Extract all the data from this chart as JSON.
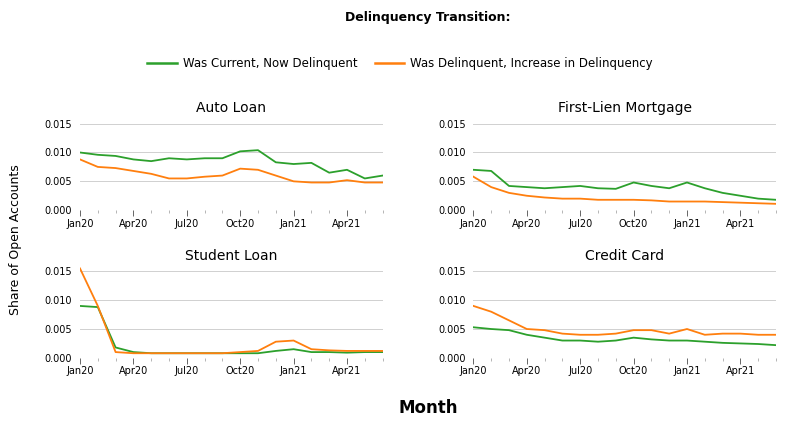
{
  "title": "Delinquency Transition:",
  "legend_labels": [
    "Was Current, Now Delinquent",
    "Was Delinquent, Increase in Delinquency"
  ],
  "legend_colors": [
    "#2ca02c",
    "#ff7f0e"
  ],
  "ylabel": "Share of Open Accounts",
  "xlabel": "Month",
  "subplots": [
    {
      "title": "Auto Loan",
      "green": [
        0.01,
        0.0096,
        0.0094,
        0.0088,
        0.0085,
        0.009,
        0.0088,
        0.009,
        0.009,
        0.0102,
        0.0104,
        0.0083,
        0.008,
        0.0082,
        0.0065,
        0.007,
        0.0055,
        0.006
      ],
      "orange": [
        0.0088,
        0.0075,
        0.0073,
        0.0068,
        0.0063,
        0.0055,
        0.0055,
        0.0058,
        0.006,
        0.0072,
        0.007,
        0.006,
        0.005,
        0.0048,
        0.0048,
        0.0052,
        0.0048,
        0.0048
      ],
      "ylim": [
        0,
        0.016
      ],
      "yticks": [
        0.0,
        0.005,
        0.01,
        0.015
      ]
    },
    {
      "title": "First-Lien Mortgage",
      "green": [
        0.007,
        0.0068,
        0.0042,
        0.004,
        0.0038,
        0.004,
        0.0042,
        0.0038,
        0.0037,
        0.0048,
        0.0042,
        0.0038,
        0.0048,
        0.0038,
        0.003,
        0.0025,
        0.002,
        0.0018
      ],
      "orange": [
        0.0058,
        0.004,
        0.003,
        0.0025,
        0.0022,
        0.002,
        0.002,
        0.0018,
        0.0018,
        0.0018,
        0.0017,
        0.0015,
        0.0015,
        0.0015,
        0.0014,
        0.0013,
        0.0012,
        0.0011
      ],
      "ylim": [
        0,
        0.016
      ],
      "yticks": [
        0.0,
        0.005,
        0.01,
        0.015
      ]
    },
    {
      "title": "Student Loan",
      "green": [
        0.009,
        0.0088,
        0.0018,
        0.001,
        0.0008,
        0.0008,
        0.0008,
        0.0008,
        0.0008,
        0.0008,
        0.0008,
        0.0012,
        0.0015,
        0.001,
        0.001,
        0.0009,
        0.001,
        0.001
      ],
      "orange": [
        0.0155,
        0.009,
        0.001,
        0.0008,
        0.0008,
        0.0008,
        0.0008,
        0.0008,
        0.0008,
        0.001,
        0.0012,
        0.0028,
        0.003,
        0.0015,
        0.0013,
        0.0012,
        0.0012,
        0.0012
      ],
      "ylim": [
        0,
        0.016
      ],
      "yticks": [
        0.0,
        0.005,
        0.01,
        0.015
      ]
    },
    {
      "title": "Credit Card",
      "green": [
        0.0053,
        0.005,
        0.0048,
        0.004,
        0.0035,
        0.003,
        0.003,
        0.0028,
        0.003,
        0.0035,
        0.0032,
        0.003,
        0.003,
        0.0028,
        0.0026,
        0.0025,
        0.0024,
        0.0022
      ],
      "orange": [
        0.009,
        0.008,
        0.0065,
        0.005,
        0.0048,
        0.0042,
        0.004,
        0.004,
        0.0042,
        0.0048,
        0.0048,
        0.0042,
        0.005,
        0.004,
        0.0042,
        0.0042,
        0.004,
        0.004
      ],
      "ylim": [
        0,
        0.016
      ],
      "yticks": [
        0.0,
        0.005,
        0.01,
        0.015
      ]
    }
  ],
  "n_points": 18,
  "tick_positions": [
    0,
    3,
    6,
    9,
    12,
    15
  ],
  "tick_labels": [
    "Jan20",
    "Apr20",
    "Jul20",
    "Oct20",
    "Jan21",
    "Apr21"
  ],
  "green_color": "#2ca02c",
  "orange_color": "#ff7f0e",
  "background_color": "#ffffff",
  "grid_color": "#d0d0d0",
  "title_fontsize": 9,
  "subtitle_fontsize": 8.5,
  "ylabel_fontsize": 9,
  "xlabel_fontsize": 12,
  "ytick_fontsize": 7,
  "xtick_fontsize": 7,
  "subplot_title_fontsize": 10,
  "linewidth": 1.3
}
